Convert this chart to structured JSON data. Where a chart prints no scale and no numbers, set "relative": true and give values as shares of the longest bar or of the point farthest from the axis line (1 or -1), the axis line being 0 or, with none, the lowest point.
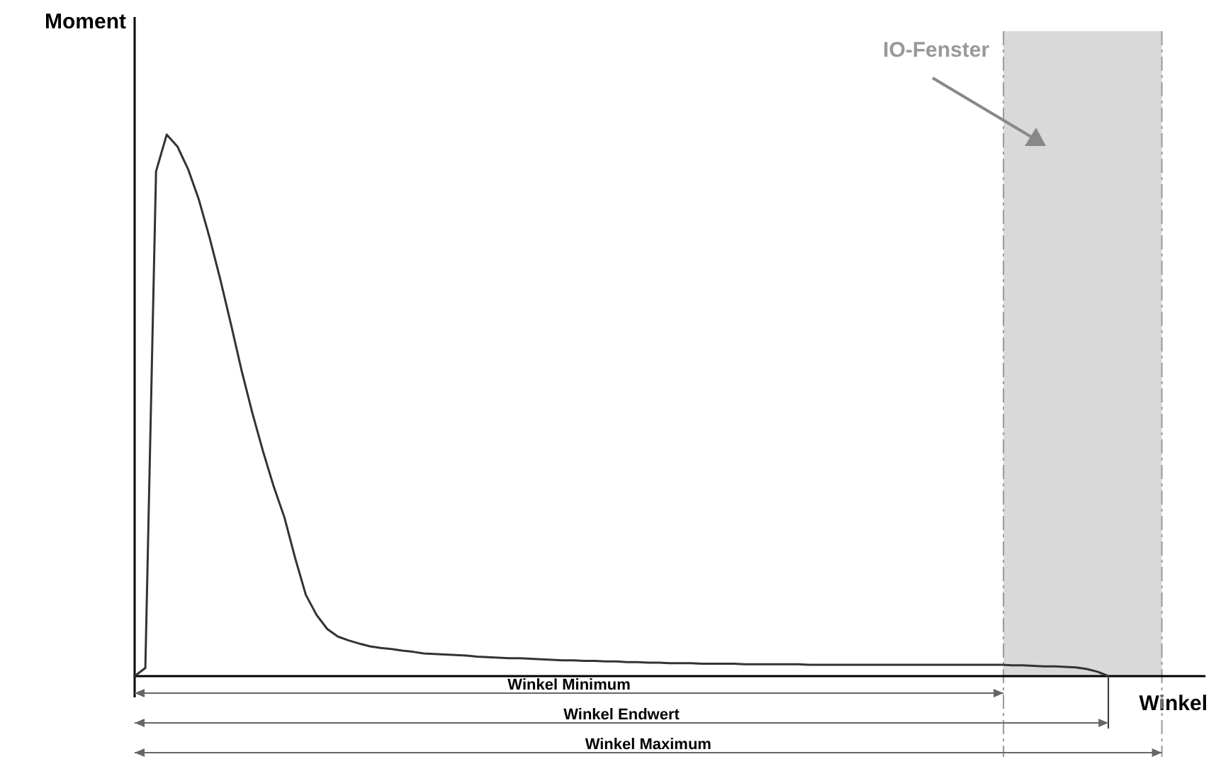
{
  "chart_data": {
    "type": "line",
    "relative": true,
    "xlabel": "Winkel",
    "ylabel": "Moment",
    "line_style": "solid",
    "categories": [
      null,
      null,
      null,
      null,
      null,
      null,
      null,
      null,
      null,
      null,
      null,
      null,
      null,
      null,
      null,
      null,
      null,
      null,
      null,
      null,
      null,
      null,
      null,
      null,
      null,
      null,
      null,
      null,
      null,
      null,
      null,
      null,
      null,
      null,
      null,
      null,
      null,
      null,
      null,
      null,
      null,
      null,
      null,
      null,
      null,
      null,
      null,
      null,
      null,
      null,
      null,
      null,
      null,
      null,
      null,
      null,
      null,
      null,
      null,
      null,
      null,
      null,
      null,
      null,
      null,
      null,
      null,
      null,
      null,
      null,
      null,
      null,
      null,
      null,
      null,
      null,
      null,
      null,
      null,
      null,
      null,
      null,
      null,
      null,
      null,
      null,
      null,
      null,
      null,
      null,
      null,
      null,
      null,
      null,
      null,
      null,
      null,
      null,
      null,
      null,
      null
    ],
    "series": [
      {
        "color": "#333333",
        "values": [
          0,
          0.015,
          0.932,
          1,
          0.978,
          0.936,
          0.88,
          0.81,
          0.733,
          0.65,
          0.564,
          0.486,
          0.415,
          0.35,
          0.293,
          0.218,
          0.15,
          0.113,
          0.087,
          0.073,
          0.066,
          0.06,
          0.055,
          0.052,
          0.05,
          0.047,
          0.045,
          0.042,
          0.041,
          0.04,
          0.039,
          0.038,
          0.036,
          0.035,
          0.034,
          0.033,
          0.033,
          0.032,
          0.031,
          0.03,
          0.029,
          0.029,
          0.028,
          0.028,
          0.027,
          0.027,
          0.026,
          0.026,
          0.025,
          0.025,
          0.024,
          0.024,
          0.024,
          0.023,
          0.023,
          0.023,
          0.023,
          0.022,
          0.022,
          0.022,
          0.022,
          0.022,
          0.022,
          0.021,
          0.021,
          0.021,
          0.021,
          0.021,
          0.021,
          0.021,
          0.021,
          0.021,
          0.021,
          0.021,
          0.021,
          0.021,
          0.021,
          0.021,
          0.021,
          0.021,
          0.021,
          0.021,
          0.02,
          0.02,
          0.019,
          0.018,
          0.018,
          0.017,
          0.016,
          0.013,
          0.008,
          0,
          null,
          null,
          null,
          null,
          null,
          null,
          null,
          null,
          null
        ]
      }
    ],
    "annotations": [
      "IO-Fenster",
      "Winkel Minimum",
      "Winkel Endwert",
      "Winkel Maximum"
    ]
  }
}
